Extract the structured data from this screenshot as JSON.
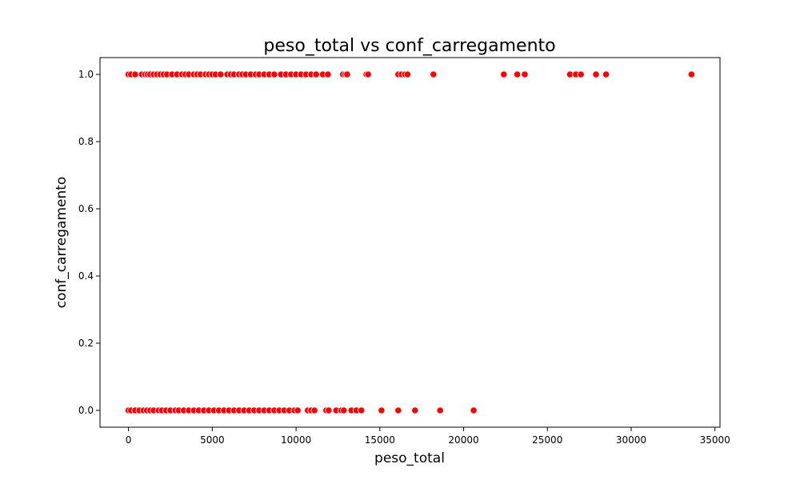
{
  "chart_data": {
    "type": "scatter",
    "title": "peso_total vs conf_carregamento",
    "xlabel": "peso_total",
    "ylabel": "conf_carregamento",
    "xlim": [
      -1700,
      35300
    ],
    "ylim": [
      -0.05,
      1.05
    ],
    "xticks": [
      0,
      5000,
      10000,
      15000,
      20000,
      25000,
      30000,
      35000
    ],
    "xtick_labels": [
      "0",
      "5000",
      "10000",
      "15000",
      "20000",
      "25000",
      "30000",
      "35000"
    ],
    "yticks": [
      0.0,
      0.2,
      0.4,
      0.6,
      0.8,
      1.0
    ],
    "ytick_labels": [
      "0.0",
      "0.2",
      "0.4",
      "0.6",
      "0.8",
      "1.0"
    ],
    "grid": false,
    "legend": "none",
    "marker_color": "#ff0000",
    "series": [
      {
        "color": "#ff0000",
        "points": [
          {
            "x": 0,
            "y": 1
          },
          {
            "x": 150,
            "y": 1
          },
          {
            "x": 400,
            "y": 1
          },
          {
            "x": 800,
            "y": 1
          },
          {
            "x": 1000,
            "y": 1
          },
          {
            "x": 1150,
            "y": 1
          },
          {
            "x": 1300,
            "y": 1
          },
          {
            "x": 1500,
            "y": 1
          },
          {
            "x": 1700,
            "y": 1
          },
          {
            "x": 1900,
            "y": 1
          },
          {
            "x": 2100,
            "y": 1
          },
          {
            "x": 2300,
            "y": 1
          },
          {
            "x": 2600,
            "y": 1
          },
          {
            "x": 2900,
            "y": 1
          },
          {
            "x": 3200,
            "y": 1
          },
          {
            "x": 3400,
            "y": 1
          },
          {
            "x": 3600,
            "y": 1
          },
          {
            "x": 3900,
            "y": 1
          },
          {
            "x": 4100,
            "y": 1
          },
          {
            "x": 4300,
            "y": 1
          },
          {
            "x": 4600,
            "y": 1
          },
          {
            "x": 4800,
            "y": 1
          },
          {
            "x": 5000,
            "y": 1
          },
          {
            "x": 5200,
            "y": 1
          },
          {
            "x": 5500,
            "y": 1
          },
          {
            "x": 5900,
            "y": 1
          },
          {
            "x": 6100,
            "y": 1
          },
          {
            "x": 6300,
            "y": 1
          },
          {
            "x": 6600,
            "y": 1
          },
          {
            "x": 6800,
            "y": 1
          },
          {
            "x": 7000,
            "y": 1
          },
          {
            "x": 7300,
            "y": 1
          },
          {
            "x": 7600,
            "y": 1
          },
          {
            "x": 7800,
            "y": 1
          },
          {
            "x": 8100,
            "y": 1
          },
          {
            "x": 8400,
            "y": 1
          },
          {
            "x": 8700,
            "y": 1
          },
          {
            "x": 9100,
            "y": 1
          },
          {
            "x": 9400,
            "y": 1
          },
          {
            "x": 9700,
            "y": 1
          },
          {
            "x": 10000,
            "y": 1
          },
          {
            "x": 10300,
            "y": 1
          },
          {
            "x": 10600,
            "y": 1
          },
          {
            "x": 10900,
            "y": 1
          },
          {
            "x": 11200,
            "y": 1
          },
          {
            "x": 11600,
            "y": 1
          },
          {
            "x": 11900,
            "y": 1
          },
          {
            "x": 12800,
            "y": 1
          },
          {
            "x": 12950,
            "y": 1
          },
          {
            "x": 13050,
            "y": 1
          },
          {
            "x": 14200,
            "y": 1
          },
          {
            "x": 14300,
            "y": 1
          },
          {
            "x": 16100,
            "y": 1
          },
          {
            "x": 16300,
            "y": 1
          },
          {
            "x": 16500,
            "y": 1
          },
          {
            "x": 16650,
            "y": 1
          },
          {
            "x": 18200,
            "y": 1
          },
          {
            "x": 22400,
            "y": 1
          },
          {
            "x": 23200,
            "y": 1
          },
          {
            "x": 23650,
            "y": 1
          },
          {
            "x": 26350,
            "y": 1
          },
          {
            "x": 26700,
            "y": 1
          },
          {
            "x": 27000,
            "y": 1
          },
          {
            "x": 27900,
            "y": 1
          },
          {
            "x": 28500,
            "y": 1
          },
          {
            "x": 33600,
            "y": 1
          },
          {
            "x": 0,
            "y": 0
          },
          {
            "x": 150,
            "y": 0
          },
          {
            "x": 400,
            "y": 0
          },
          {
            "x": 650,
            "y": 0
          },
          {
            "x": 900,
            "y": 0
          },
          {
            "x": 1100,
            "y": 0
          },
          {
            "x": 1300,
            "y": 0
          },
          {
            "x": 1500,
            "y": 0
          },
          {
            "x": 1800,
            "y": 0
          },
          {
            "x": 2000,
            "y": 0
          },
          {
            "x": 2250,
            "y": 0
          },
          {
            "x": 2500,
            "y": 0
          },
          {
            "x": 2800,
            "y": 0
          },
          {
            "x": 3000,
            "y": 0
          },
          {
            "x": 3300,
            "y": 0
          },
          {
            "x": 3600,
            "y": 0
          },
          {
            "x": 3900,
            "y": 0
          },
          {
            "x": 4200,
            "y": 0
          },
          {
            "x": 4500,
            "y": 0
          },
          {
            "x": 4800,
            "y": 0
          },
          {
            "x": 5100,
            "y": 0
          },
          {
            "x": 5400,
            "y": 0
          },
          {
            "x": 5700,
            "y": 0
          },
          {
            "x": 6000,
            "y": 0
          },
          {
            "x": 6300,
            "y": 0
          },
          {
            "x": 6600,
            "y": 0
          },
          {
            "x": 6900,
            "y": 0
          },
          {
            "x": 7200,
            "y": 0
          },
          {
            "x": 7500,
            "y": 0
          },
          {
            "x": 7800,
            "y": 0
          },
          {
            "x": 8100,
            "y": 0
          },
          {
            "x": 8400,
            "y": 0
          },
          {
            "x": 8700,
            "y": 0
          },
          {
            "x": 9000,
            "y": 0
          },
          {
            "x": 9300,
            "y": 0
          },
          {
            "x": 9600,
            "y": 0
          },
          {
            "x": 9900,
            "y": 0
          },
          {
            "x": 10100,
            "y": 0
          },
          {
            "x": 10700,
            "y": 0
          },
          {
            "x": 10900,
            "y": 0
          },
          {
            "x": 11100,
            "y": 0
          },
          {
            "x": 11800,
            "y": 0
          },
          {
            "x": 11950,
            "y": 0
          },
          {
            "x": 12400,
            "y": 0
          },
          {
            "x": 12700,
            "y": 0
          },
          {
            "x": 12850,
            "y": 0
          },
          {
            "x": 13300,
            "y": 0
          },
          {
            "x": 13600,
            "y": 0
          },
          {
            "x": 13900,
            "y": 0
          },
          {
            "x": 15100,
            "y": 0
          },
          {
            "x": 16100,
            "y": 0
          },
          {
            "x": 17100,
            "y": 0
          },
          {
            "x": 18600,
            "y": 0
          },
          {
            "x": 20600,
            "y": 0
          }
        ]
      }
    ]
  }
}
